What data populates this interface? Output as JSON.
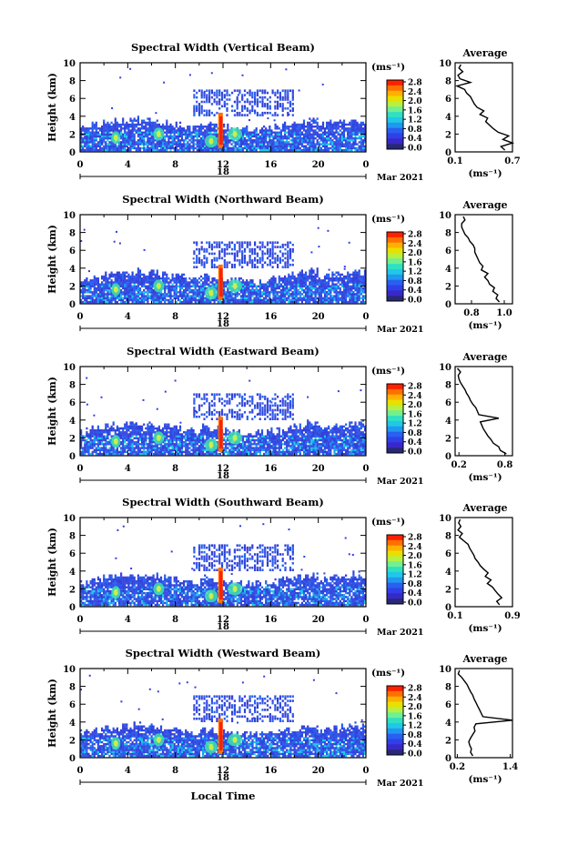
{
  "colorbar": {
    "unit": "(ms⁻¹)",
    "ticks": [
      "2.8",
      "2.4",
      "2.0",
      "1.6",
      "1.2",
      "0.8",
      "0.4",
      "0.0"
    ],
    "colors": [
      "#ff2000",
      "#ff7000",
      "#ffb000",
      "#e8e000",
      "#b8f040",
      "#70f090",
      "#30e0c0",
      "#20c8e8",
      "#2098f0",
      "#2860f0",
      "#3040e8",
      "#3828c8",
      "#282878"
    ]
  },
  "x_axis": {
    "ticks": [
      "0",
      "4",
      "8",
      "12",
      "16",
      "20",
      "0"
    ],
    "date_day": "18",
    "date_month_year": "Mar 2021",
    "xlabel": "Local Time"
  },
  "average_title": "Average",
  "average_unit": "(ms⁻¹)",
  "chart_data": [
    {
      "type": "heatmap",
      "title": "Spectral Width (Vertical Beam)",
      "ylabel": "Height (km)",
      "x_range_hours": [
        0,
        24
      ],
      "ylim": [
        0,
        10
      ],
      "y_ticks": [
        "10",
        "8",
        "6",
        "4",
        "2",
        "0"
      ],
      "profile": {
        "title": "Average",
        "xlabel": "(ms⁻¹)",
        "x_ticks": [
          "0.1",
          "0.7"
        ],
        "xlim": [
          0.1,
          0.7
        ],
        "height_km": [
          0.2,
          0.6,
          1.0,
          1.4,
          1.8,
          2.2,
          2.6,
          3.0,
          3.4,
          3.8,
          4.2,
          4.6,
          5.0,
          5.4,
          5.8,
          6.2,
          6.6,
          7.0,
          7.4,
          7.8,
          8.2,
          8.6,
          9.0,
          9.4,
          9.8
        ],
        "values": [
          0.62,
          0.58,
          0.7,
          0.6,
          0.66,
          0.55,
          0.5,
          0.46,
          0.42,
          0.44,
          0.36,
          0.4,
          0.33,
          0.3,
          0.28,
          0.26,
          0.22,
          0.2,
          0.12,
          0.26,
          0.15,
          0.13,
          0.18,
          0.14,
          0.16
        ]
      }
    },
    {
      "type": "heatmap",
      "title": "Spectral Width (Northward Beam)",
      "ylabel": "Height (km)",
      "x_range_hours": [
        0,
        24
      ],
      "ylim": [
        0,
        10
      ],
      "y_ticks": [
        "10",
        "8",
        "6",
        "4",
        "2",
        "0"
      ],
      "profile": {
        "title": "Average",
        "xlabel": "(ms⁻¹)",
        "x_ticks": [
          "0.8",
          "1.0"
        ],
        "xlim": [
          0.7,
          1.05
        ],
        "height_km": [
          0.2,
          0.6,
          1.0,
          1.4,
          1.8,
          2.2,
          2.6,
          3.0,
          3.4,
          3.8,
          4.2,
          4.6,
          5.0,
          5.4,
          5.8,
          6.2,
          6.6,
          7.0,
          7.4,
          7.8,
          8.2,
          8.6,
          9.0,
          9.4,
          9.8
        ],
        "values": [
          0.97,
          0.95,
          0.96,
          0.93,
          0.94,
          0.91,
          0.9,
          0.88,
          0.9,
          0.86,
          0.87,
          0.85,
          0.84,
          0.83,
          0.82,
          0.82,
          0.81,
          0.79,
          0.78,
          0.76,
          0.75,
          0.74,
          0.74,
          0.76,
          0.75
        ]
      }
    },
    {
      "type": "heatmap",
      "title": "Spectral Width (Eastward Beam)",
      "ylabel": "Height (km)",
      "x_range_hours": [
        0,
        24
      ],
      "ylim": [
        0,
        10
      ],
      "y_ticks": [
        "10",
        "8",
        "6",
        "4",
        "2",
        "0"
      ],
      "profile": {
        "title": "Average",
        "xlabel": "(ms⁻¹)",
        "x_ticks": [
          "0.2",
          "0.8"
        ],
        "xlim": [
          0.15,
          0.9
        ],
        "height_km": [
          0.2,
          0.6,
          1.0,
          1.4,
          1.8,
          2.2,
          2.6,
          3.0,
          3.4,
          3.8,
          4.2,
          4.6,
          5.0,
          5.4,
          5.8,
          6.2,
          6.6,
          7.0,
          7.4,
          7.8,
          8.2,
          8.6,
          9.0,
          9.4,
          9.8
        ],
        "values": [
          0.82,
          0.74,
          0.72,
          0.65,
          0.62,
          0.58,
          0.55,
          0.52,
          0.5,
          0.48,
          0.72,
          0.46,
          0.44,
          0.42,
          0.38,
          0.35,
          0.33,
          0.3,
          0.28,
          0.25,
          0.22,
          0.2,
          0.19,
          0.22,
          0.18
        ]
      }
    },
    {
      "type": "heatmap",
      "title": "Spectral Width (Southward Beam)",
      "ylabel": "Height (km)",
      "x_range_hours": [
        0,
        24
      ],
      "ylim": [
        0,
        10
      ],
      "y_ticks": [
        "10",
        "8",
        "6",
        "4",
        "2",
        "0"
      ],
      "profile": {
        "title": "Average",
        "xlabel": "(ms⁻¹)",
        "x_ticks": [
          "0.1",
          "0.9"
        ],
        "xlim": [
          0.1,
          0.9
        ],
        "height_km": [
          0.2,
          0.6,
          1.0,
          1.4,
          1.8,
          2.2,
          2.6,
          3.0,
          3.4,
          3.8,
          4.2,
          4.6,
          5.0,
          5.4,
          5.8,
          6.2,
          6.6,
          7.0,
          7.4,
          7.8,
          8.2,
          8.6,
          9.0,
          9.4,
          9.8
        ],
        "values": [
          0.72,
          0.68,
          0.75,
          0.7,
          0.66,
          0.62,
          0.55,
          0.6,
          0.52,
          0.56,
          0.5,
          0.45,
          0.42,
          0.38,
          0.36,
          0.33,
          0.3,
          0.28,
          0.22,
          0.16,
          0.2,
          0.14,
          0.18,
          0.15,
          0.17
        ]
      }
    },
    {
      "type": "heatmap",
      "title": "Spectral Width (Westward Beam)",
      "ylabel": "Height (km)",
      "x_range_hours": [
        0,
        24
      ],
      "ylim": [
        0,
        10
      ],
      "y_ticks": [
        "10",
        "8",
        "6",
        "4",
        "2",
        "0"
      ],
      "profile": {
        "title": "Average",
        "xlabel": "(ms⁻¹)",
        "x_ticks": [
          "0.2",
          "1.4"
        ],
        "xlim": [
          0.15,
          1.45
        ],
        "height_km": [
          0.2,
          0.6,
          1.0,
          1.4,
          1.8,
          2.2,
          2.6,
          3.0,
          3.4,
          3.8,
          4.2,
          4.6,
          5.0,
          5.4,
          5.8,
          6.2,
          6.6,
          7.0,
          7.4,
          7.8,
          8.2,
          8.6,
          9.0,
          9.4,
          9.8
        ],
        "values": [
          0.55,
          0.5,
          0.52,
          0.48,
          0.46,
          0.5,
          0.55,
          0.6,
          0.58,
          0.62,
          1.45,
          0.78,
          0.74,
          0.7,
          0.66,
          0.62,
          0.58,
          0.55,
          0.5,
          0.46,
          0.42,
          0.36,
          0.3,
          0.22,
          0.25
        ]
      }
    }
  ]
}
